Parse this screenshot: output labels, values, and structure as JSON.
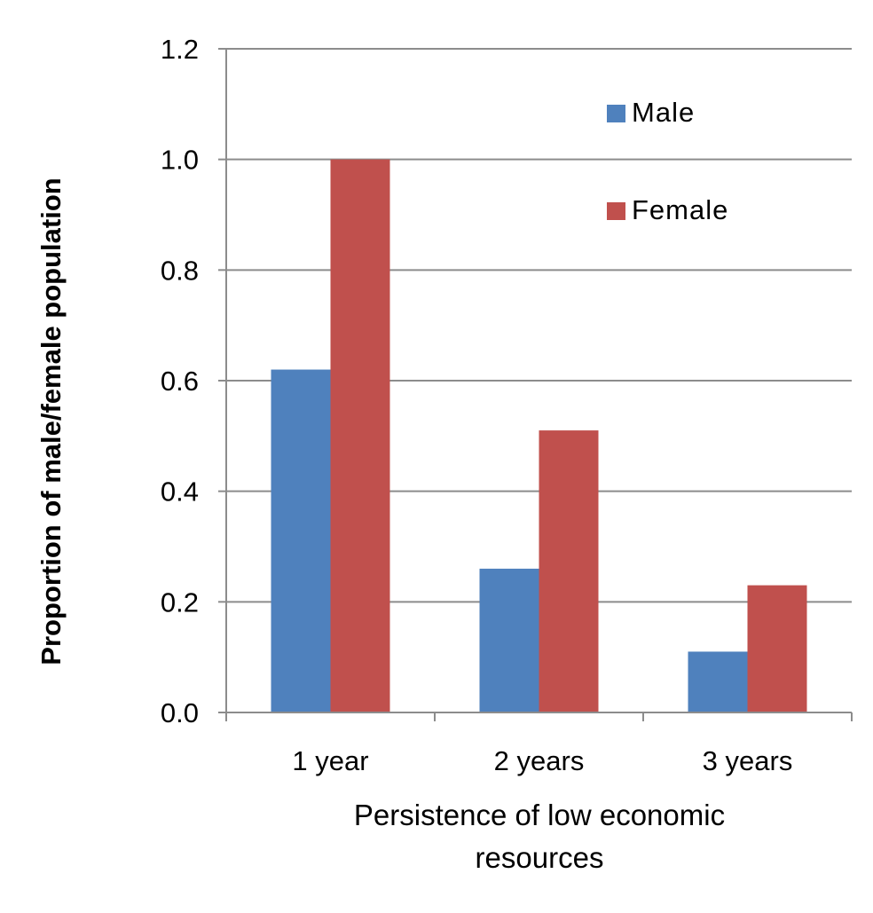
{
  "chart_data": {
    "type": "bar",
    "title": "",
    "xlabel_lines": [
      "Persistence of low economic",
      "resources"
    ],
    "ylabel": "Proportion of male/female population",
    "categories": [
      "1 year",
      "2 years",
      "3 years"
    ],
    "series": [
      {
        "name": "Male",
        "color": "#4f81bd",
        "values": [
          0.62,
          0.26,
          0.11
        ]
      },
      {
        "name": "Female",
        "color": "#c0504d",
        "values": [
          1.0,
          0.51,
          0.23
        ]
      }
    ],
    "ylim": [
      0,
      1.2
    ],
    "yticks": [
      "0.0",
      "0.2",
      "0.4",
      "0.6",
      "0.8",
      "1.0",
      "1.2"
    ],
    "grid": true,
    "legend_position": "top-right"
  }
}
